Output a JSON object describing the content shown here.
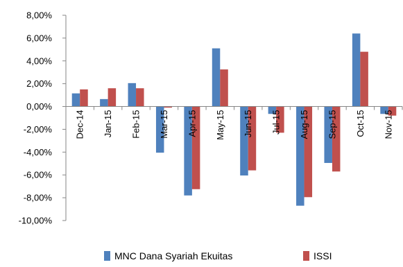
{
  "chart_data": {
    "type": "bar",
    "categories": [
      "Dec-14",
      "Jan-15",
      "Feb-15",
      "Mar-15",
      "Apr-15",
      "May-15",
      "Jun-15",
      "Jul-15",
      "Aug-15",
      "Sep-15",
      "Oct-15",
      "Nov-15"
    ],
    "series": [
      {
        "name": "MNC Dana Syariah Ekuitas",
        "color": "#4F81BD",
        "values": [
          1.15,
          0.65,
          2.05,
          -4.05,
          -7.8,
          5.1,
          -6.05,
          -0.65,
          -8.7,
          -4.95,
          6.4,
          -0.65
        ]
      },
      {
        "name": "ISSI",
        "color": "#C0504D",
        "values": [
          1.5,
          1.6,
          1.6,
          -0.1,
          -7.25,
          3.25,
          -5.6,
          -2.3,
          -7.95,
          -5.7,
          4.8,
          -0.8
        ]
      }
    ],
    "ylim": [
      -10,
      8
    ],
    "yticks": [
      8,
      6,
      4,
      2,
      0,
      -2,
      -4,
      -6,
      -8,
      -10
    ],
    "ytick_labels": [
      "8,00%",
      "6,00%",
      "4,00%",
      "2,00%",
      "0,00%",
      "-2,00%",
      "-4,00%",
      "-6,00%",
      "-8,00%",
      "-10,00%"
    ],
    "legend_position": "bottom",
    "grid": false
  }
}
